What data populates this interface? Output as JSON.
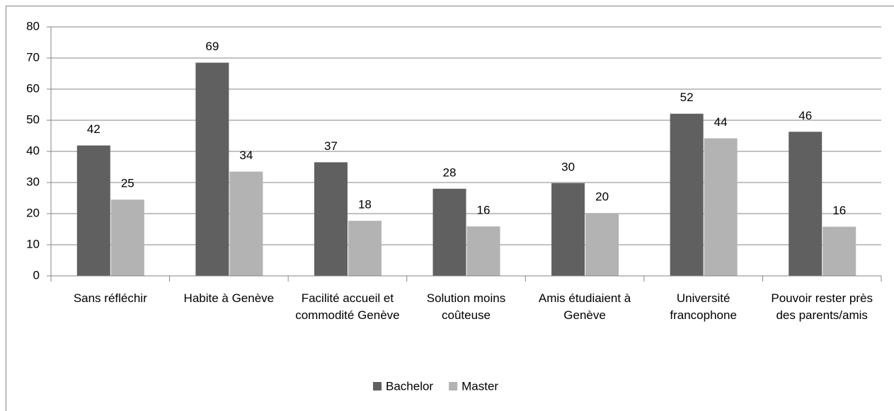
{
  "chart_data": {
    "type": "bar",
    "categories": [
      "Sans réfléchir",
      "Habite à Genève",
      "Facilité accueil et commodité Genève",
      "Solution moins coûteuse",
      "Amis étudiaient à Genève",
      "Université francophone",
      "Pouvoir rester près des parents/amis"
    ],
    "series": [
      {
        "name": "Bachelor",
        "color": "#606060",
        "values": [
          41.9,
          68.5,
          36.5,
          28,
          29.8,
          52.1,
          46.3
        ],
        "value_labels": [
          "42",
          "69",
          "37",
          "28",
          "30",
          "52",
          "46"
        ]
      },
      {
        "name": "Master",
        "color": "#b3b3b3",
        "values": [
          24.5,
          33.5,
          17.7,
          15.9,
          20.2,
          44.2,
          15.8
        ],
        "value_labels": [
          "25",
          "34",
          "18",
          "16",
          "20",
          "44",
          "16"
        ]
      }
    ],
    "ylim": [
      0,
      80
    ],
    "yticks": [
      0,
      10,
      20,
      30,
      40,
      50,
      60,
      70,
      80
    ],
    "grid": true,
    "legend": "bottom"
  }
}
